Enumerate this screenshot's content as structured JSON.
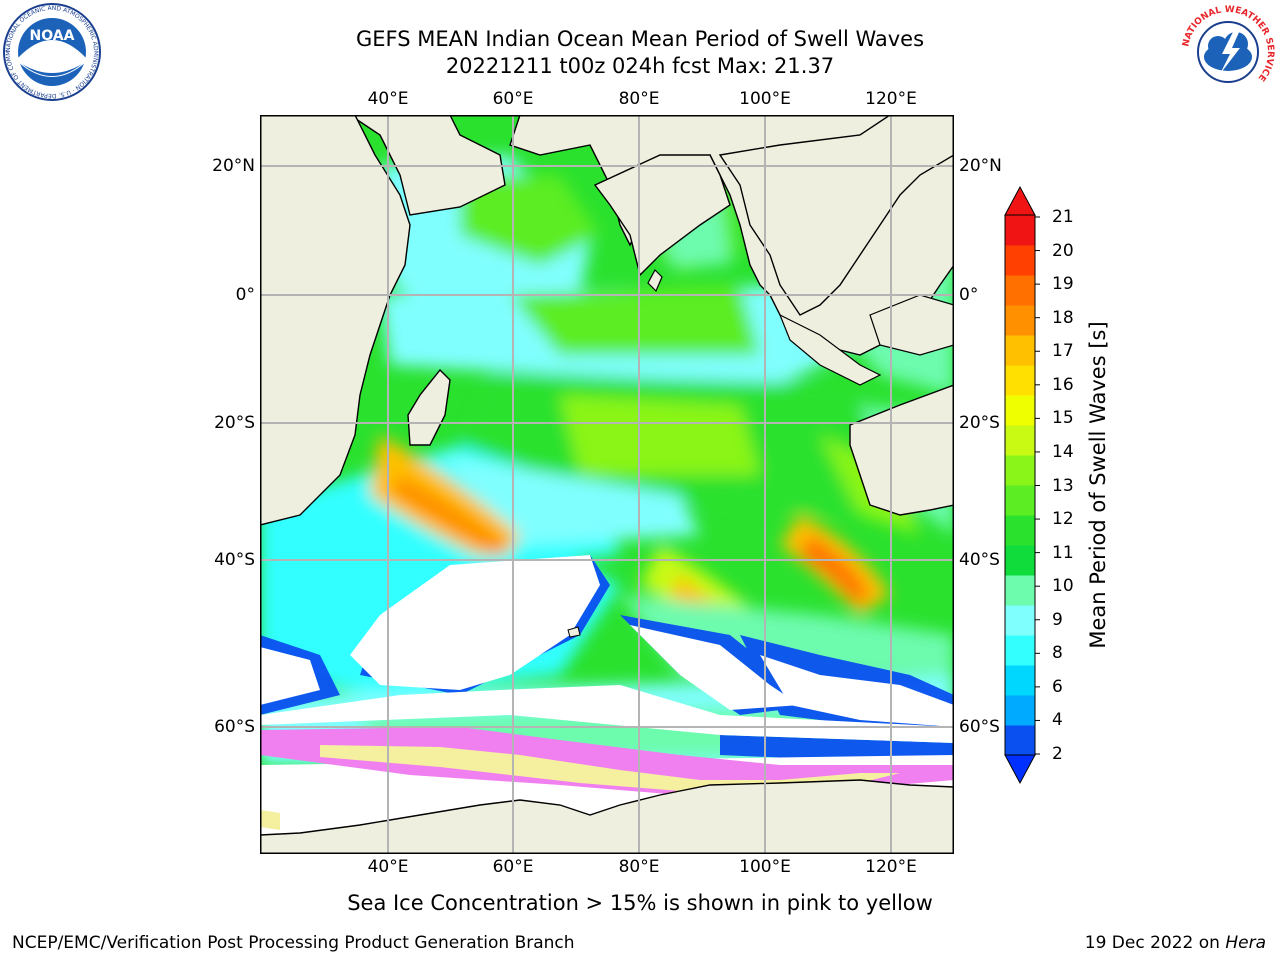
{
  "title": {
    "line1": "GEFS MEAN Indian Ocean Mean Period of Swell Waves",
    "line2": "20221211 t00z 024h fcst   Max: 21.37"
  },
  "map": {
    "lon_ticks": [
      "40°E",
      "60°E",
      "80°E",
      "100°E",
      "120°E"
    ],
    "lat_ticks_left": [
      "20°N",
      "0°",
      "20°S",
      "40°S",
      "60°S"
    ],
    "lat_ticks_right": [
      "20°N",
      "0°",
      "20°S",
      "40°S",
      "60°S"
    ],
    "colors": {
      "land": "#efefdf",
      "ocean_no_data": "#ffffff",
      "grid": "#b4b4b4",
      "coast": "#000000",
      "sea_ice_pink": "#f07ff0",
      "sea_ice_yellow": "#f5f0a0"
    }
  },
  "colorbar": {
    "label": "Mean Period of Swell Waves [s]",
    "ticks": [
      "21",
      "20",
      "19",
      "18",
      "17",
      "16",
      "15",
      "14",
      "13",
      "12",
      "11",
      "10",
      "9",
      "8",
      "6",
      "4",
      "2"
    ],
    "colors_low_to_high": [
      "#0a50f0",
      "#00aaff",
      "#00d7ff",
      "#33ffff",
      "#80ffff",
      "#6dfbae",
      "#10dc3c",
      "#2ae12e",
      "#5ced22",
      "#8af518",
      "#c8fa14",
      "#f0ff00",
      "#ffe000",
      "#ffc000",
      "#ff9000",
      "#ff7000",
      "#ff4000",
      "#f01414"
    ]
  },
  "caption": "Sea Ice Concentration > 15% is shown in pink to yellow",
  "footer": {
    "credit": "NCEP/EMC/Verification Post Processing Product Generation Branch",
    "date": "19 Dec 2022 on",
    "machine": "Hera"
  },
  "logos": {
    "left": "NOAA",
    "left_ring": "NATIONAL OCEANIC AND ATMOSPHERIC ADMINISTRATION · U.S. DEPARTMENT OF COMMERCE",
    "right_ring": "NATIONAL WEATHER SERVICE"
  }
}
